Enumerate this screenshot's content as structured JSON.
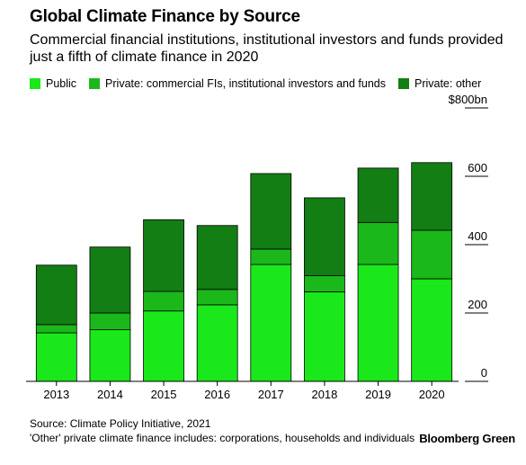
{
  "title": "Global Climate Finance by Source",
  "subtitle": "Commercial financial institutions, institutional investors and funds provided just a fifth of climate finance in 2020",
  "legend": [
    {
      "label": "Public",
      "color": "#1ae81a"
    },
    {
      "label": "Private: commercial FIs, institutional investors and funds",
      "color": "#1bb81b"
    },
    {
      "label": "Private: other",
      "color": "#137e13"
    }
  ],
  "footer": {
    "source": "Source: Climate Policy Initiative, 2021",
    "note": "'Other' private climate finance includes: corporations, households and individuals"
  },
  "brand": "Bloomberg Green",
  "chart_data": {
    "type": "bar",
    "stacked": true,
    "categories": [
      "2013",
      "2014",
      "2015",
      "2016",
      "2017",
      "2018",
      "2019",
      "2020"
    ],
    "series": [
      {
        "name": "Public",
        "color": "#1ae81a",
        "values": [
          142,
          151,
          206,
          224,
          342,
          262,
          342,
          300
        ]
      },
      {
        "name": "Private: commercial FIs, institutional investors and funds",
        "color": "#1bb81b",
        "values": [
          24,
          49,
          57,
          45,
          45,
          47,
          123,
          142
        ]
      },
      {
        "name": "Private: other",
        "color": "#137e13",
        "values": [
          174,
          193,
          210,
          187,
          221,
          228,
          159,
          198
        ]
      }
    ],
    "ylim": [
      0,
      800
    ],
    "yticks": [
      0,
      200,
      400,
      600,
      800
    ],
    "ytick_labels": [
      "0",
      "200",
      "400",
      "600",
      "$800bn"
    ],
    "ylabel": "",
    "xlabel": "",
    "grid": false,
    "legend_position": "top"
  }
}
